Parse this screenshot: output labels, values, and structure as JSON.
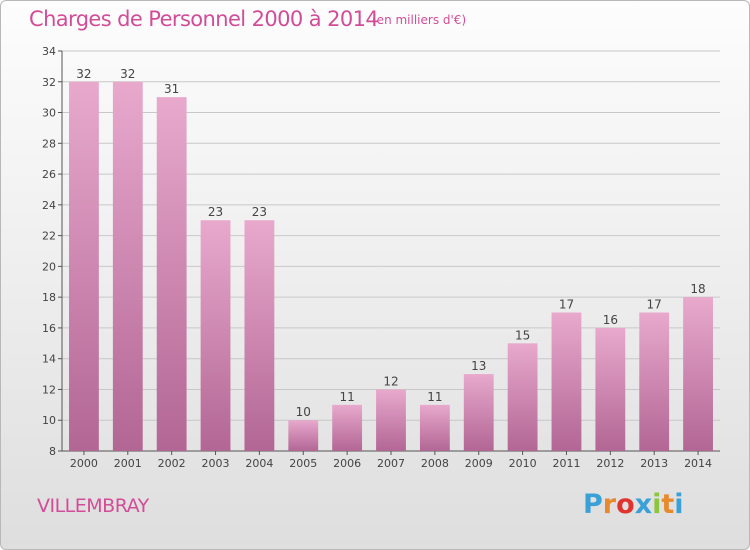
{
  "header": {
    "title": "Charges de Personnel 2000 à 2014",
    "subtitle": "(en milliers d'€)"
  },
  "footer": {
    "commune": "VILLEMBRAY",
    "logo_text": "Proxiti",
    "logo_colors": [
      "#3aa0d8",
      "#e88a2c",
      "#e0332f",
      "#3aa0d8",
      "#8cc63f",
      "#e88a2c",
      "#3aa0d8"
    ]
  },
  "colors": {
    "title": "#d24d97",
    "bar_top": "#e8a9cd",
    "bar_bottom": "#b26694",
    "grid": "#c8c8c8"
  },
  "chart_data": {
    "type": "bar",
    "categories": [
      "2000",
      "2001",
      "2002",
      "2003",
      "2004",
      "2005",
      "2006",
      "2007",
      "2008",
      "2009",
      "2010",
      "2011",
      "2012",
      "2013",
      "2014"
    ],
    "values": [
      32,
      32,
      31,
      23,
      23,
      10,
      11,
      12,
      11,
      13,
      15,
      17,
      16,
      17,
      18
    ],
    "ylim": [
      8,
      34
    ],
    "yticks": [
      8,
      10,
      12,
      14,
      16,
      18,
      20,
      22,
      24,
      26,
      28,
      30,
      32,
      34
    ],
    "grid": true,
    "xlabel": "",
    "ylabel": ""
  }
}
